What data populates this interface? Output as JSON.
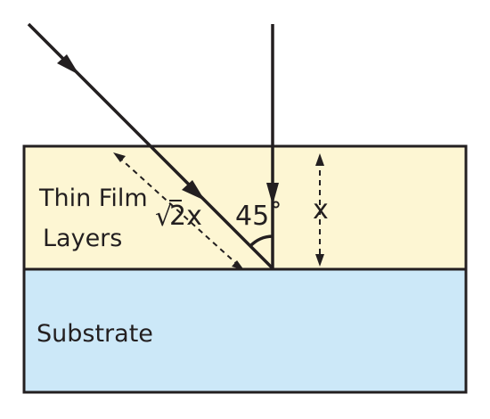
{
  "colors": {
    "thin_film_fill": "#fdf6d3",
    "substrate_fill": "#cce8f8",
    "stroke": "#231f20"
  },
  "labels": {
    "thin_film_line1": "Thin Film",
    "thin_film_line2": "Layers",
    "substrate": "Substrate",
    "diagonal_sqrt_symbol": "√",
    "diagonal_value": "2x",
    "angle": "45˚",
    "thickness": "x"
  },
  "icons": {
    "incident_ray_arrow": "arrowhead",
    "vertical_ray_arrow": "arrowhead"
  }
}
